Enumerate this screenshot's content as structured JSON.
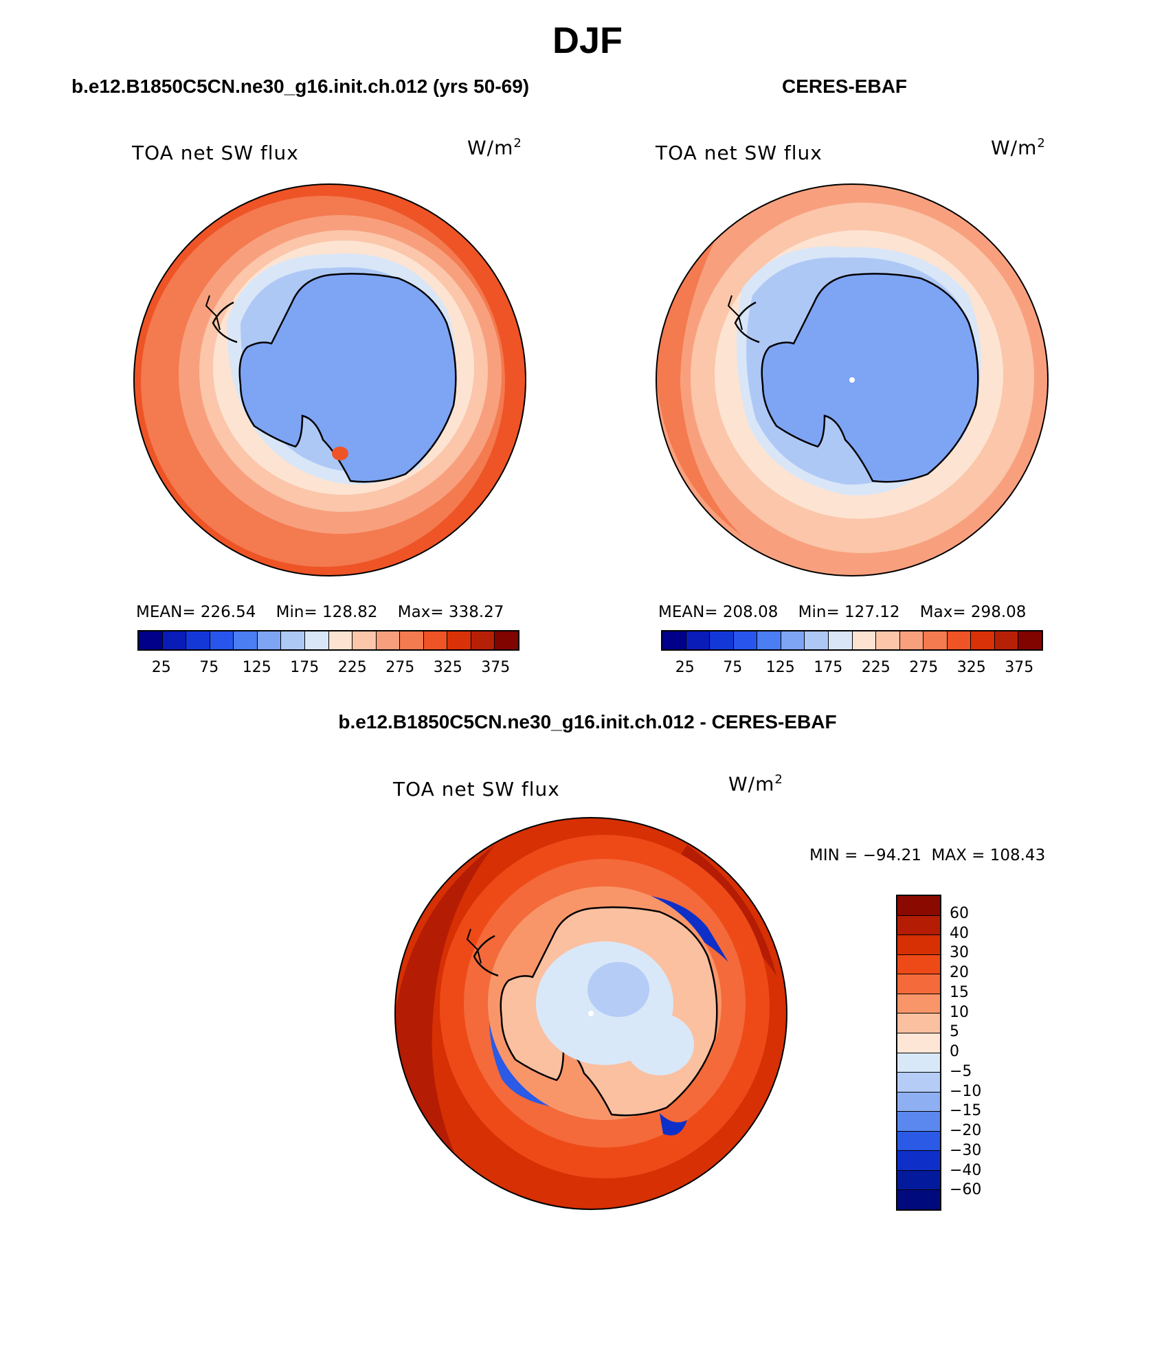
{
  "title": "DJF",
  "panels": {
    "model": {
      "title": "b.e12.B1850C5CN.ne30_g16.init.ch.012 (yrs 50-69)",
      "variable": "TOA net SW flux",
      "units": "W/m",
      "units_exp": "2",
      "stats": {
        "mean_label": "MEAN=",
        "mean": "226.54",
        "min_label": "Min=",
        "min": "128.82",
        "max_label": "Max=",
        "max": "338.27"
      }
    },
    "obs": {
      "title": "CERES-EBAF",
      "variable": "TOA net SW flux",
      "units": "W/m",
      "units_exp": "2",
      "stats": {
        "mean_label": "MEAN=",
        "mean": "208.08",
        "min_label": "Min=",
        "min": "127.12",
        "max_label": "Max=",
        "max": "298.08"
      }
    },
    "diff": {
      "title": "b.e12.B1850C5CN.ne30_g16.init.ch.012 - CERES-EBAF",
      "variable": "TOA net SW flux",
      "units": "W/m",
      "units_exp": "2",
      "stats": {
        "min_label": "MIN =",
        "min": "−94.21",
        "max_label": "MAX =",
        "max": "108.43"
      }
    }
  },
  "colorbar_abs": {
    "ticks": [
      "25",
      "75",
      "125",
      "175",
      "225",
      "275",
      "325",
      "375"
    ],
    "colors": [
      "#00008a",
      "#0a1cb8",
      "#1438d8",
      "#2856ec",
      "#4a7ef2",
      "#7ea4f4",
      "#aec8f6",
      "#d8e6f8",
      "#fde3d2",
      "#fbc6aa",
      "#f8a07e",
      "#f47a50",
      "#ee5426",
      "#da3208",
      "#b62006",
      "#820400"
    ]
  },
  "colorbar_diff": {
    "ticks": [
      "60",
      "40",
      "30",
      "20",
      "15",
      "10",
      "5",
      "0",
      "−5",
      "−10",
      "−15",
      "−20",
      "−30",
      "−40",
      "−60"
    ],
    "colors": [
      "#8a0a00",
      "#b41c04",
      "#d63004",
      "#ee4a18",
      "#f46a3a",
      "#f8966a",
      "#fbc0a0",
      "#fde6d6",
      "#d8e8f8",
      "#b4ccf6",
      "#8eb0f2",
      "#5a88ee",
      "#2a5ae6",
      "#0e30c8",
      "#041a9c",
      "#000a7c"
    ]
  }
}
